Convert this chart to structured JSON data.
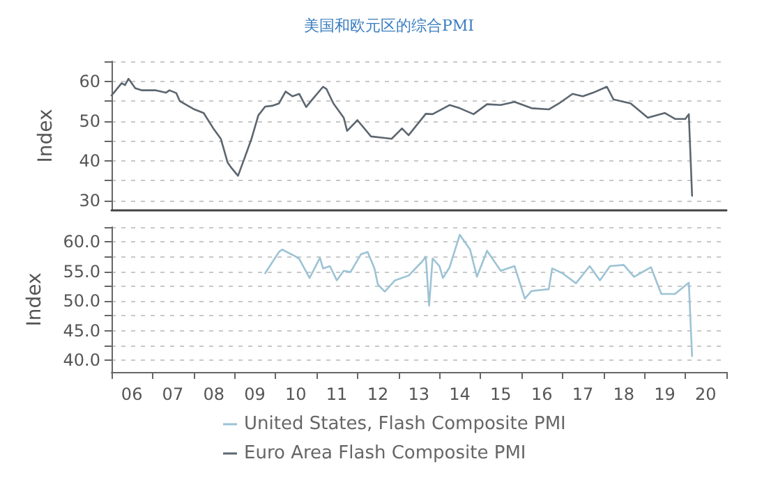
{
  "chart_data": [
    {
      "type": "line",
      "title": "美国和欧元区的综合PMI",
      "ylabel": "Index",
      "xlim": [
        "2006-01",
        "2021-01"
      ],
      "tick_labels": "y",
      "ylim": [
        27.5,
        65
      ],
      "yticks": [
        30,
        {
          "value": 35,
          "label": null
        },
        40,
        {
          "value": 45,
          "label": null
        },
        50,
        {
          "value": 55,
          "label": null
        },
        60,
        {
          "value": 65,
          "label": null
        }
      ],
      "grid": "y",
      "legend": "bottom",
      "marker": "none",
      "line_style": "solid",
      "series": [
        {
          "name": "Euro Area Flash Composite PMI",
          "color": "#5c6670",
          "x": [
            "2006-01",
            "2006-04",
            "2006-05",
            "2006-06",
            "2006-08",
            "2006-10",
            "2007-02",
            "2007-05",
            "2007-06",
            "2007-08",
            "2007-09",
            "2008-01",
            "2008-04",
            "2008-07",
            "2008-09",
            "2008-11",
            "2008-12",
            "2009-02",
            "2009-04",
            "2009-06",
            "2009-08",
            "2009-10",
            "2009-12",
            "2010-02",
            "2010-04",
            "2010-06",
            "2010-08",
            "2010-10",
            "2010-12",
            "2011-03",
            "2011-04",
            "2011-06",
            "2011-09",
            "2011-10",
            "2012-01",
            "2012-05",
            "2012-08",
            "2012-11",
            "2013-02",
            "2013-04",
            "2013-09",
            "2013-11",
            "2014-04",
            "2014-07",
            "2014-11",
            "2015-03",
            "2015-07",
            "2015-11",
            "2016-04",
            "2016-09",
            "2016-12",
            "2017-04",
            "2017-07",
            "2017-10",
            "2018-02",
            "2018-04",
            "2018-09",
            "2019-02",
            "2019-07",
            "2019-10",
            "2020-01",
            "2020-02",
            "2020-03"
          ],
          "values": [
            56.4,
            59.5,
            59,
            60.6,
            58.2,
            57.7,
            57.7,
            57.1,
            57.7,
            57,
            55,
            53,
            52,
            47.9,
            45.5,
            39.5,
            38.3,
            36.2,
            40.7,
            45.5,
            51.4,
            53.6,
            53.8,
            54.4,
            57.4,
            56.2,
            56.8,
            53.5,
            55.6,
            58.6,
            58,
            54.4,
            50.8,
            47.5,
            50.2,
            46.1,
            45.8,
            45.5,
            48.1,
            46.4,
            51.8,
            51.7,
            54,
            53.2,
            51.7,
            54.2,
            54,
            54.8,
            53.2,
            52.9,
            54.4,
            56.8,
            56.2,
            57.1,
            58.6,
            55.4,
            54.4,
            50.8,
            52,
            50.5,
            50.5,
            51.7,
            31.2
          ]
        }
      ]
    },
    {
      "type": "line",
      "ylabel": "Index",
      "xlim": [
        "2006-01",
        "2021-01"
      ],
      "xticks": [
        {
          "value": "2006",
          "label": null
        },
        {
          "value": "2006-07",
          "label": "06"
        },
        {
          "value": "2007",
          "label": null
        },
        {
          "value": "2007-07",
          "label": "07"
        },
        {
          "value": "2008",
          "label": null
        },
        {
          "value": "2008-07",
          "label": "08"
        },
        {
          "value": "2009",
          "label": null
        },
        {
          "value": "2009-07",
          "label": "09"
        },
        {
          "value": "2010",
          "label": null
        },
        {
          "value": "2010-07",
          "label": "10"
        },
        {
          "value": "2011",
          "label": null
        },
        {
          "value": "2011-07",
          "label": "11"
        },
        {
          "value": "2012",
          "label": null
        },
        {
          "value": "2012-07",
          "label": "12"
        },
        {
          "value": "2013",
          "label": null
        },
        {
          "value": "2013-07",
          "label": "13"
        },
        {
          "value": "2014",
          "label": null
        },
        {
          "value": "2014-07",
          "label": "14"
        },
        {
          "value": "2015",
          "label": null
        },
        {
          "value": "2015-07",
          "label": "15"
        },
        {
          "value": "2016",
          "label": null
        },
        {
          "value": "2016-07",
          "label": "16"
        },
        {
          "value": "2017",
          "label": null
        },
        {
          "value": "2017-07",
          "label": "17"
        },
        {
          "value": "2018",
          "label": null
        },
        {
          "value": "2018-07",
          "label": "18"
        },
        {
          "value": "2019",
          "label": null
        },
        {
          "value": "2019-07",
          "label": "19"
        },
        {
          "value": "2020",
          "label": null
        },
        {
          "value": "2020-07",
          "label": "20"
        },
        {
          "value": "2021",
          "label": null
        }
      ],
      "ylim": [
        38,
        62.5
      ],
      "yticks": [
        {
          "value": 40,
          "label": "40.0"
        },
        {
          "value": 42.5,
          "label": null
        },
        {
          "value": 45,
          "label": "45.0"
        },
        {
          "value": 47.5,
          "label": null
        },
        {
          "value": 50,
          "label": "50.0"
        },
        {
          "value": 52.5,
          "label": null
        },
        {
          "value": 55,
          "label": "55.0"
        },
        {
          "value": 57.5,
          "label": null
        },
        {
          "value": 60,
          "label": "60.0"
        },
        {
          "value": 62.5,
          "label": null
        }
      ],
      "grid": "y",
      "legend": "bottom",
      "marker": "none",
      "line_style": "solid",
      "series": [
        {
          "name": "United States, Flash Composite PMI",
          "color": "#9cc3d5",
          "x": [
            "2009-10",
            "2010-02",
            "2010-03",
            "2010-07",
            "2010-08",
            "2010-11",
            "2011-02",
            "2011-03",
            "2011-05",
            "2011-07",
            "2011-09",
            "2011-11",
            "2012-02",
            "2012-04",
            "2012-06",
            "2012-07",
            "2012-09",
            "2012-12",
            "2013-04",
            "2013-08",
            "2013-09",
            "2013-10",
            "2013-11",
            "2014-01",
            "2014-02",
            "2014-04",
            "2014-07",
            "2014-10",
            "2014-12",
            "2015-03",
            "2015-07",
            "2015-11",
            "2016-02",
            "2016-04",
            "2016-09",
            "2016-10",
            "2017-01",
            "2017-05",
            "2017-09",
            "2017-12",
            "2018-03",
            "2018-07",
            "2018-10",
            "2019-03",
            "2019-06",
            "2019-10",
            "2020-02",
            "2020-03"
          ],
          "values": [
            54.7,
            58.3,
            58.7,
            57.5,
            57.1,
            53.9,
            57.3,
            55.5,
            55.9,
            53.5,
            55.1,
            54.9,
            57.9,
            58.3,
            55.5,
            52.8,
            51.6,
            53.5,
            54.3,
            56.7,
            57.5,
            49.2,
            57.2,
            55.9,
            53.9,
            55.7,
            61.2,
            58.7,
            54.1,
            58.5,
            55.1,
            55.9,
            50.4,
            51.7,
            52,
            55.5,
            54.7,
            53,
            55.9,
            53.5,
            55.9,
            56.1,
            54.1,
            55.7,
            51.2,
            51.2,
            53.1,
            40.7
          ]
        }
      ]
    }
  ]
}
